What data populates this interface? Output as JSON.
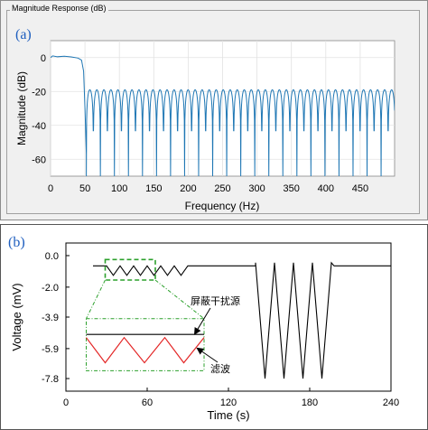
{
  "panel_a": {
    "panel_label": "(a)",
    "window_title": "Magnitude Response (dB)"
  },
  "panel_b": {
    "panel_label": "(b)",
    "annotations": {
      "interference": "屏蔽干扰源",
      "filtered": "滤波"
    }
  },
  "colors": {
    "response_line": "#1f77b4",
    "zoom_box": "#2ca02c",
    "filtered_trace": "#e32626",
    "signal_trace": "#000000"
  },
  "chart_data": [
    {
      "type": "line",
      "title": "",
      "xlabel": "Frequency (Hz)",
      "ylabel": "Magnitude (dB)",
      "xlim": [
        0,
        500
      ],
      "ylim": [
        -70,
        10
      ],
      "x_ticks": [
        0,
        50,
        100,
        150,
        200,
        250,
        300,
        350,
        400,
        450
      ],
      "y_ticks": [
        0,
        -20,
        -40,
        -60
      ],
      "grid": true,
      "series": [
        {
          "passband_edge_hz": 48,
          "stopband_start_hz": 52,
          "stopband_peak_db": -19,
          "notch_spacing_hz": 10.2,
          "notch_depth_db": -70,
          "points": [
            [
              0,
              0
            ],
            [
              3,
              1
            ],
            [
              10,
              0.5
            ],
            [
              20,
              0.8
            ],
            [
              30,
              0.4
            ],
            [
              40,
              -0.3
            ],
            [
              45,
              -1.5
            ],
            [
              48,
              -8
            ],
            [
              50,
              -30
            ],
            [
              52,
              -57
            ]
          ]
        }
      ]
    },
    {
      "type": "line",
      "title": "",
      "xlabel": "Time (s)",
      "ylabel": "Voltage (mV)",
      "xlim": [
        0,
        240
      ],
      "ylim": [
        -8.6,
        0.8
      ],
      "x_ticks": [
        0,
        60,
        120,
        180,
        240
      ],
      "y_ticks": [
        0.0,
        -2.0,
        -3.9,
        -5.9,
        -7.8
      ],
      "grid": false,
      "series": [
        {
          "points": [
            [
              20,
              -0.65
            ],
            [
              30,
              -0.65
            ],
            [
              35,
              -1.25
            ],
            [
              40,
              -0.65
            ],
            [
              45,
              -1.25
            ],
            [
              50,
              -0.65
            ],
            [
              55,
              -1.25
            ],
            [
              60,
              -0.65
            ],
            [
              65,
              -1.25
            ],
            [
              70,
              -0.65
            ],
            [
              75,
              -1.25
            ],
            [
              80,
              -0.65
            ],
            [
              85,
              -1.25
            ],
            [
              90,
              -0.65
            ],
            [
              100,
              -0.65
            ],
            [
              140,
              -0.65
            ],
            [
              140,
              -0.45
            ],
            [
              147,
              -7.8
            ],
            [
              154,
              -0.45
            ],
            [
              161,
              -7.8
            ],
            [
              168,
              -0.45
            ],
            [
              175,
              -7.8
            ],
            [
              182,
              -0.45
            ],
            [
              189,
              -7.8
            ],
            [
              196,
              -0.45
            ],
            [
              198,
              -0.65
            ],
            [
              240,
              -0.65
            ]
          ]
        }
      ],
      "inset": {
        "x_range": [
          15,
          102
        ],
        "y_range": [
          -4.0,
          -7.3
        ],
        "signal_level": -5.0,
        "filtered_points": [
          [
            15,
            -5.2
          ],
          [
            29,
            -6.8
          ],
          [
            43,
            -5.2
          ],
          [
            58,
            -6.8
          ],
          [
            73,
            -5.2
          ],
          [
            87,
            -6.8
          ],
          [
            102,
            -5.2
          ]
        ]
      }
    }
  ]
}
